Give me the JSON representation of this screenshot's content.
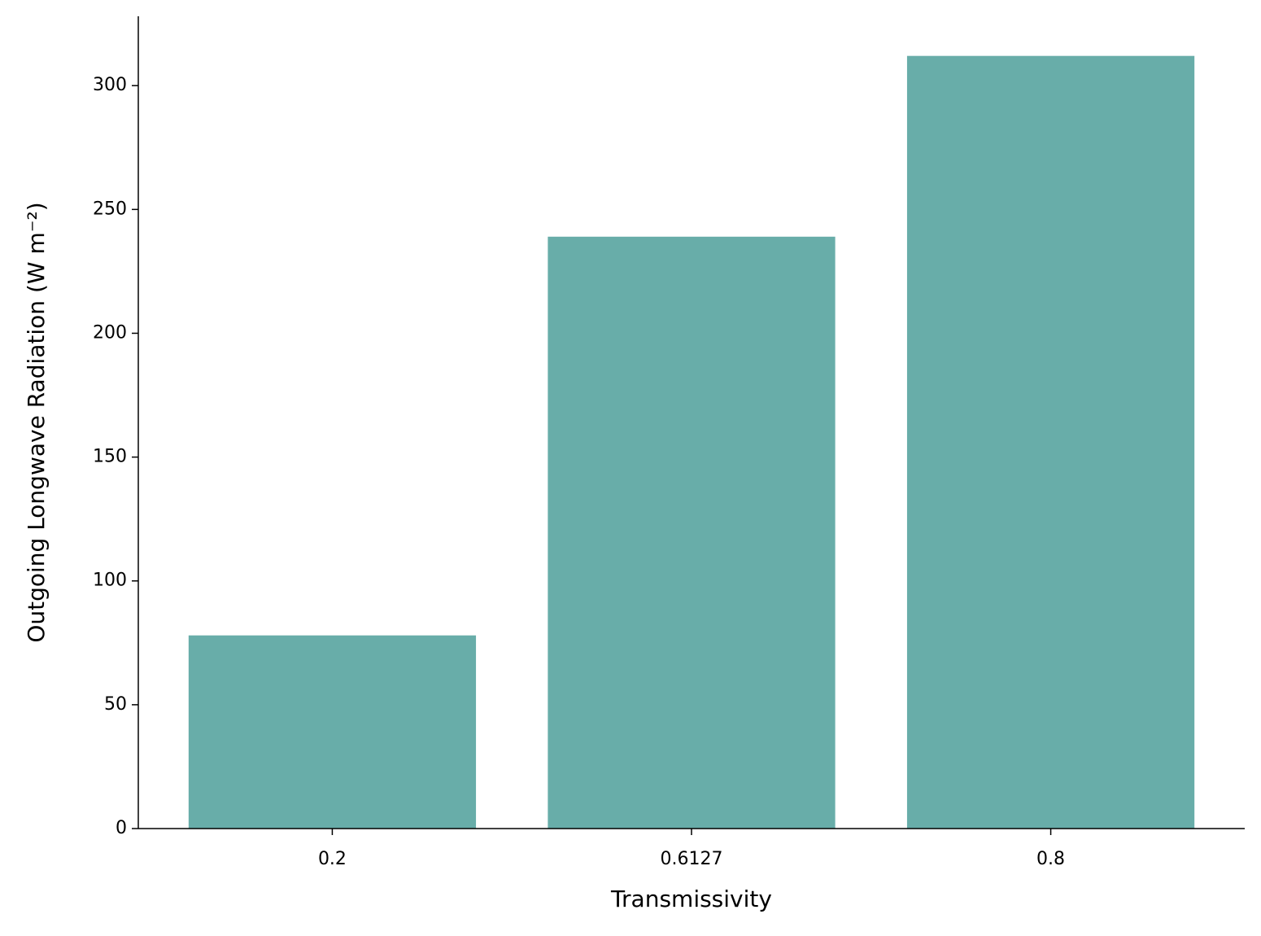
{
  "chart_data": {
    "type": "bar",
    "xlabel": "Transmissivity",
    "ylabel": "Outgoing Longwave Radiation (W m⁻²)",
    "categories": [
      "0.2",
      "0.6127",
      "0.8"
    ],
    "values": [
      78,
      239,
      312
    ],
    "color": "#68ada9",
    "ylim": [
      0,
      328
    ],
    "yticks": [
      0,
      50,
      100,
      150,
      200,
      250,
      300
    ],
    "grid": false
  }
}
